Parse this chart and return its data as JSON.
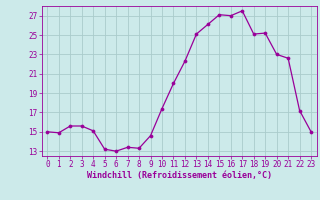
{
  "x": [
    0,
    1,
    2,
    3,
    4,
    5,
    6,
    7,
    8,
    9,
    10,
    11,
    12,
    13,
    14,
    15,
    16,
    17,
    18,
    19,
    20,
    21,
    22,
    23
  ],
  "y": [
    15.0,
    14.9,
    15.6,
    15.6,
    15.1,
    13.2,
    13.0,
    13.4,
    13.3,
    14.6,
    17.4,
    20.0,
    22.3,
    25.1,
    26.1,
    27.1,
    27.0,
    27.5,
    25.1,
    25.2,
    23.0,
    22.6,
    17.2,
    15.0
  ],
  "line_color": "#990099",
  "marker": "o",
  "marker_size": 2.2,
  "bg_color": "#cceaea",
  "grid_color": "#aacccc",
  "xlabel": "Windchill (Refroidissement éolien,°C)",
  "xlim": [
    -0.5,
    23.5
  ],
  "ylim": [
    12.5,
    28.0
  ],
  "yticks": [
    13,
    15,
    17,
    19,
    21,
    23,
    25,
    27
  ],
  "xticks": [
    0,
    1,
    2,
    3,
    4,
    5,
    6,
    7,
    8,
    9,
    10,
    11,
    12,
    13,
    14,
    15,
    16,
    17,
    18,
    19,
    20,
    21,
    22,
    23
  ],
  "tick_color": "#990099",
  "label_color": "#990099",
  "tick_fontsize": 5.5,
  "xlabel_fontsize": 6.0
}
